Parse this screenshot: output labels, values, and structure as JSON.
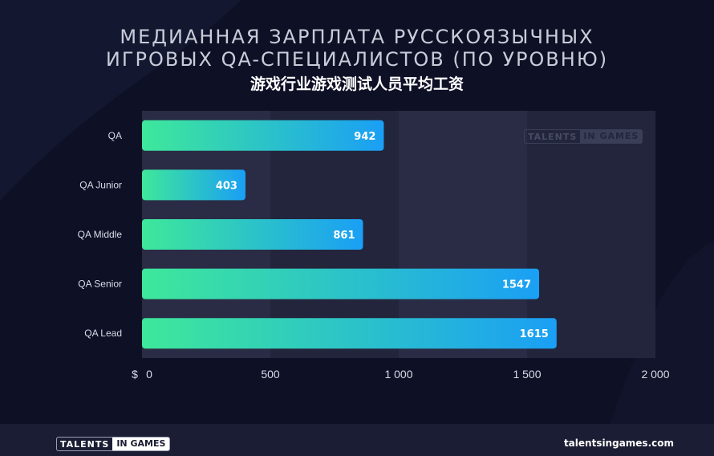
{
  "header": {
    "title_line1": "МЕДИАННАЯ ЗАРПЛАТА РУССКОЯЗЫЧНЫХ",
    "title_line2": "ИГРОВЫХ QA-СПЕЦИАЛИСТОВ (ПО УРОВНЮ)",
    "subtitle": "游戏行业游戏测试人员平均工资"
  },
  "watermark": {
    "part1": "TALENTS",
    "part2": "IN GAMES"
  },
  "footer": {
    "logo_part1": "TALENTS",
    "logo_part2": "IN GAMES",
    "site": "talentsingames.com"
  },
  "chart_data": {
    "type": "bar",
    "orientation": "horizontal",
    "categories": [
      "QA",
      "QA Junior",
      "QA Middle",
      "QA Senior",
      "QA Lead"
    ],
    "values": [
      942,
      403,
      861,
      1547,
      1615
    ],
    "value_labels": [
      "942",
      "403",
      "861",
      "1547",
      "1615"
    ],
    "x_unit": "$",
    "xlim": [
      0,
      2000
    ],
    "x_ticks": [
      0,
      500,
      1000,
      1500,
      2000
    ],
    "x_tick_labels": [
      "0",
      "500",
      "1 000",
      "1 500",
      "2 000"
    ],
    "colors": {
      "bar_start": "#3ee89a",
      "bar_end": "#1a9ff5",
      "panel": "#2a2c45",
      "panel_alt": "#23253c"
    }
  }
}
